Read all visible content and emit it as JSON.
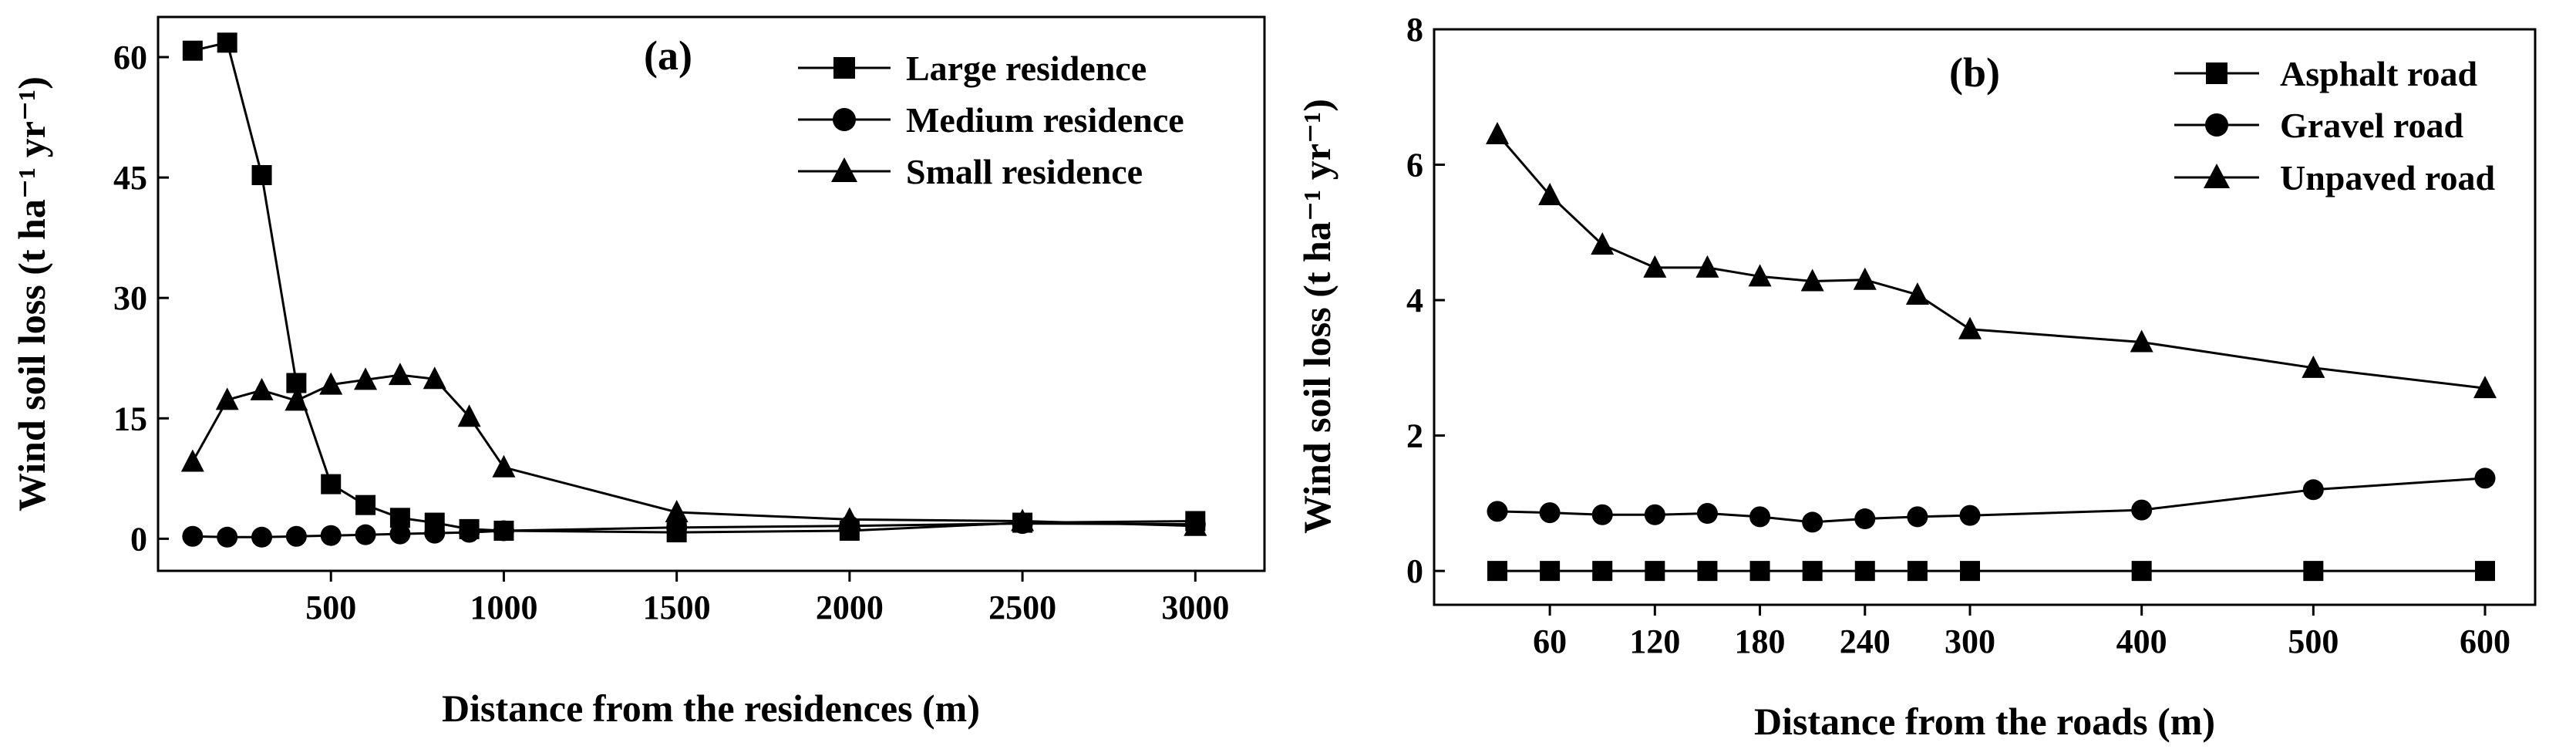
{
  "chart_data": [
    {
      "type": "line",
      "panel_label": "(a)",
      "xlabel": "Distance from the residences (m)",
      "ylabel": "Wind soil loss (t ha⁻¹ yr⁻¹)",
      "xlim": [
        0,
        3200
      ],
      "ylim": [
        -4,
        65
      ],
      "xticks": [
        500,
        1000,
        1500,
        2000,
        2500,
        3000
      ],
      "yticks": [
        0,
        15,
        30,
        45,
        60
      ],
      "legend_position": "top-right",
      "series": [
        {
          "name": "Large residence",
          "marker": "square",
          "x": [
            100,
            200,
            300,
            400,
            500,
            600,
            700,
            800,
            900,
            1000,
            1500,
            2000,
            2500,
            3000
          ],
          "y": [
            60.8,
            61.8,
            45.3,
            19.4,
            6.8,
            4.2,
            2.6,
            2.0,
            1.2,
            1.0,
            0.8,
            1.0,
            2.0,
            2.2
          ]
        },
        {
          "name": "Medium residence",
          "marker": "circle",
          "x": [
            100,
            200,
            300,
            400,
            500,
            600,
            700,
            800,
            900,
            1000,
            1500,
            2000,
            2500,
            3000
          ],
          "y": [
            0.3,
            0.2,
            0.2,
            0.3,
            0.4,
            0.5,
            0.6,
            0.7,
            0.8,
            1.0,
            1.4,
            1.6,
            1.9,
            1.8
          ]
        },
        {
          "name": "Small residence",
          "marker": "triangle",
          "x": [
            100,
            200,
            300,
            400,
            500,
            600,
            700,
            800,
            900,
            1000,
            1500,
            2000,
            2500,
            3000
          ],
          "y": [
            9.6,
            17.3,
            18.5,
            17.2,
            19.2,
            19.8,
            20.4,
            19.9,
            15.2,
            8.9,
            3.3,
            2.4,
            2.2,
            1.6
          ]
        }
      ]
    },
    {
      "type": "line",
      "panel_label": "(b)",
      "xlabel": "Distance from the roads (m)",
      "ylabel": "Wind soil loss (t ha⁻¹ yr⁻¹)",
      "xlim": [
        0,
        640
      ],
      "ylim": [
        -0.5,
        8
      ],
      "xticks": [
        60,
        120,
        180,
        240,
        300,
        400,
        500,
        600
      ],
      "yticks": [
        0,
        2,
        4,
        6,
        8
      ],
      "x_scale": "piecewise-linear (0–300 expanded, 300–600 compressed)",
      "legend_position": "top-right",
      "series": [
        {
          "name": "Asphalt road",
          "marker": "square",
          "x": [
            30,
            60,
            90,
            120,
            150,
            180,
            210,
            240,
            270,
            300,
            400,
            500,
            600
          ],
          "y": [
            0,
            0,
            0,
            0,
            0,
            0,
            0,
            0,
            0,
            0,
            0,
            0,
            0
          ]
        },
        {
          "name": "Gravel road",
          "marker": "circle",
          "x": [
            30,
            60,
            90,
            120,
            150,
            180,
            210,
            240,
            270,
            300,
            400,
            500,
            600
          ],
          "y": [
            0.88,
            0.86,
            0.83,
            0.83,
            0.85,
            0.8,
            0.72,
            0.77,
            0.8,
            0.82,
            0.9,
            1.2,
            1.37
          ]
        },
        {
          "name": "Unpaved road",
          "marker": "triangle",
          "x": [
            30,
            60,
            90,
            120,
            150,
            180,
            210,
            240,
            270,
            300,
            400,
            500,
            600
          ],
          "y": [
            6.45,
            5.55,
            4.82,
            4.48,
            4.48,
            4.35,
            4.28,
            4.3,
            4.08,
            3.57,
            3.38,
            3.0,
            2.7
          ]
        }
      ]
    }
  ]
}
